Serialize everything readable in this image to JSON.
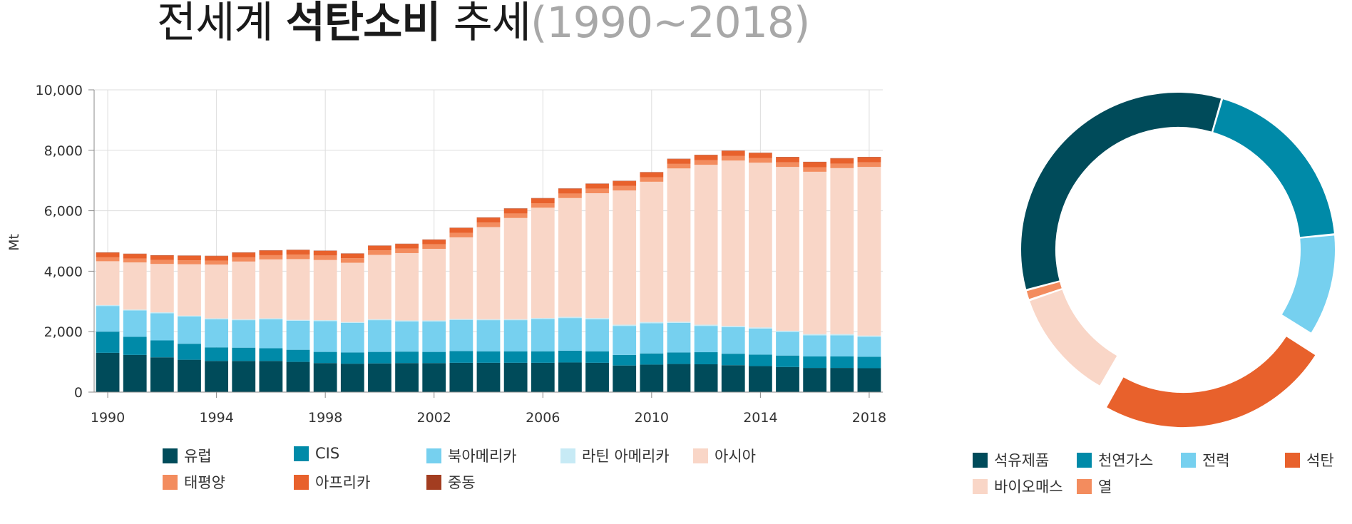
{
  "title": {
    "part1": "전세계 ",
    "part2": "석탄소비",
    "part3": " 추세",
    "period": "(1990~2018)"
  },
  "chart_data": [
    {
      "type": "bar",
      "stacked": true,
      "ylabel": "Mt",
      "ylim": [
        0,
        10000
      ],
      "yticks": [
        "0",
        "2,000",
        "4,000",
        "6,000",
        "8,000",
        "10,000"
      ],
      "xtick_labels": [
        "1990",
        "1994",
        "1998",
        "2002",
        "2006",
        "2010",
        "2014",
        "2018"
      ],
      "grid": true,
      "legend_position": "bottom",
      "categories": [
        "1990",
        "1991",
        "1992",
        "1993",
        "1994",
        "1995",
        "1996",
        "1997",
        "1998",
        "1999",
        "2000",
        "2001",
        "2002",
        "2003",
        "2004",
        "2005",
        "2006",
        "2007",
        "2008",
        "2009",
        "2010",
        "2011",
        "2012",
        "2013",
        "2014",
        "2015",
        "2016",
        "2017",
        "2018"
      ],
      "series": [
        {
          "name": "유럽",
          "color": "#004b5a",
          "values": [
            1300,
            1230,
            1150,
            1070,
            1030,
            1030,
            1030,
            1000,
            960,
            940,
            950,
            960,
            960,
            970,
            970,
            970,
            970,
            980,
            970,
            880,
            910,
            930,
            920,
            890,
            860,
            830,
            800,
            800,
            790
          ]
        },
        {
          "name": "CIS",
          "color": "#008aa8",
          "values": [
            700,
            600,
            560,
            530,
            450,
            440,
            420,
            400,
            370,
            370,
            380,
            380,
            370,
            390,
            380,
            380,
            380,
            390,
            380,
            350,
            370,
            380,
            400,
            380,
            380,
            380,
            380,
            380,
            380
          ]
        },
        {
          "name": "북아메리카",
          "color": "#76d0ef",
          "values": [
            850,
            870,
            900,
            900,
            930,
            910,
            960,
            960,
            1020,
            980,
            1050,
            1000,
            1010,
            1030,
            1030,
            1030,
            1070,
            1080,
            1060,
            960,
            1000,
            980,
            870,
            880,
            860,
            780,
            700,
            700,
            660
          ]
        },
        {
          "name": "라틴 아메리카",
          "color": "#c7eaf5",
          "values": [
            30,
            30,
            30,
            30,
            30,
            30,
            30,
            30,
            30,
            30,
            30,
            30,
            30,
            30,
            30,
            30,
            30,
            40,
            40,
            40,
            40,
            40,
            40,
            40,
            40,
            40,
            40,
            40,
            40
          ]
        },
        {
          "name": "아시아",
          "color": "#f9d6c7",
          "values": [
            1450,
            1560,
            1600,
            1700,
            1780,
            1910,
            1950,
            2010,
            1990,
            1960,
            2130,
            2230,
            2370,
            2700,
            3050,
            3350,
            3650,
            3930,
            4130,
            4440,
            4640,
            5070,
            5290,
            5470,
            5450,
            5420,
            5370,
            5490,
            5580
          ]
        },
        {
          "name": "태평양",
          "color": "#f38c5e",
          "values": [
            130,
            130,
            130,
            130,
            130,
            140,
            140,
            150,
            150,
            150,
            150,
            150,
            150,
            150,
            150,
            150,
            150,
            150,
            150,
            150,
            150,
            150,
            150,
            150,
            150,
            150,
            150,
            150,
            150
          ]
        },
        {
          "name": "아프리카",
          "color": "#e8612c",
          "values": [
            150,
            150,
            150,
            150,
            150,
            150,
            150,
            150,
            150,
            150,
            150,
            150,
            150,
            160,
            160,
            160,
            160,
            160,
            160,
            160,
            160,
            160,
            170,
            170,
            170,
            170,
            170,
            170,
            170
          ]
        },
        {
          "name": "중동",
          "color": "#a33d20",
          "values": [
            10,
            10,
            10,
            10,
            10,
            10,
            10,
            10,
            10,
            10,
            10,
            10,
            10,
            10,
            10,
            10,
            10,
            10,
            10,
            10,
            10,
            10,
            10,
            10,
            10,
            10,
            10,
            10,
            10
          ]
        }
      ]
    },
    {
      "type": "pie",
      "variant": "donut",
      "legend_position": "bottom",
      "categories": [
        "석유제품",
        "천연가스",
        "전력",
        "석탄",
        "바이오매스",
        "열"
      ],
      "values": [
        32,
        18,
        10,
        23,
        11,
        1
      ],
      "colors": [
        "#004b5a",
        "#008aa8",
        "#76d0ef",
        "#e8612c",
        "#f9d6c7",
        "#f38c5e"
      ]
    }
  ]
}
